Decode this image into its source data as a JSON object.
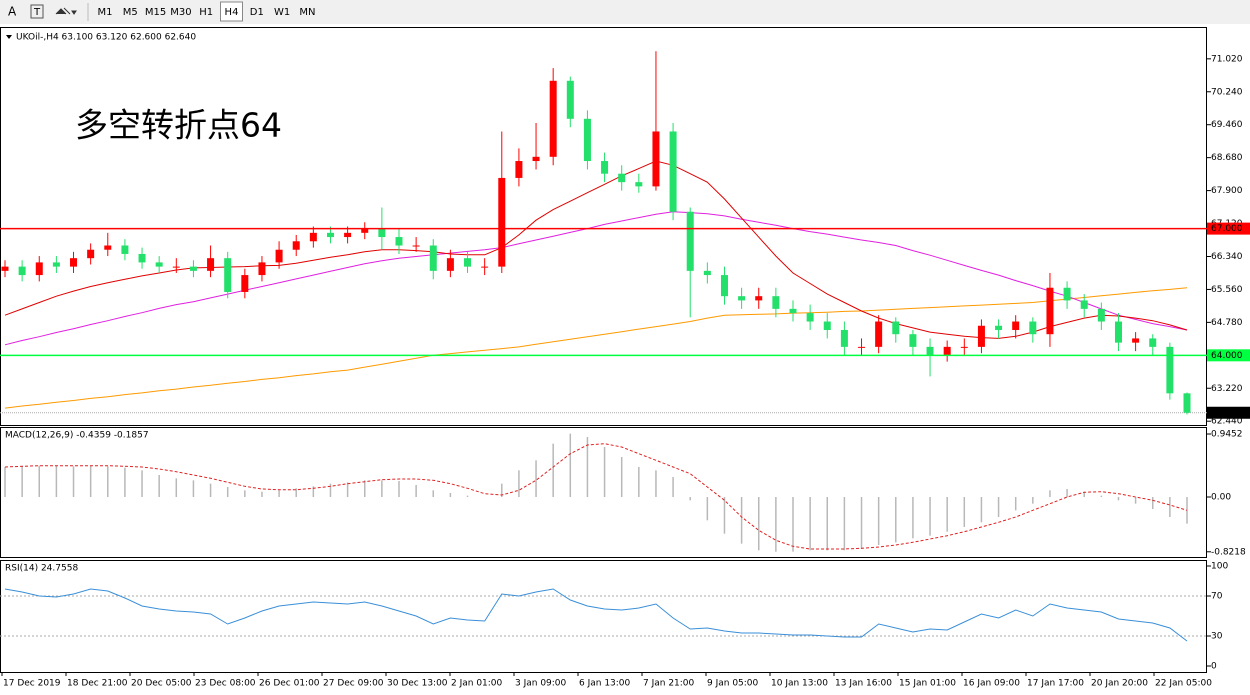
{
  "toolbar": {
    "font_button": "A",
    "timeframes": [
      "M1",
      "M5",
      "M15",
      "M30",
      "H1",
      "H4",
      "D1",
      "W1",
      "MN"
    ],
    "active": "H4"
  },
  "chart_data": [
    {
      "type": "candlestick",
      "title": "UKOil-,H4  63.100 63.120 62.600 62.640",
      "annotation": "多空转折点64",
      "annotation_color": "#ff0000",
      "up_color": "#ff0000",
      "down_color": "#22e06a",
      "x_labels": [
        "17 Dec 2019",
        "18 Dec 21:00",
        "20 Dec 05:00",
        "23 Dec 08:00",
        "26 Dec 01:00",
        "27 Dec 09:00",
        "30 Dec 13:00",
        "2 Jan 01:00",
        "3 Jan 09:00",
        "6 Jan 13:00",
        "7 Jan 21:00",
        "9 Jan 05:00",
        "10 Jan 13:00",
        "13 Jan 16:00",
        "15 Jan 01:00",
        "16 Jan 09:00",
        "17 Jan 17:00",
        "20 Jan 20:00",
        "22 Jan 05:00"
      ],
      "ylim": [
        62.35,
        71.75
      ],
      "yticks": [
        {
          "value": 71.02,
          "label": "71.020"
        },
        {
          "value": 70.24,
          "label": "70.240"
        },
        {
          "value": 69.46,
          "label": "69.460"
        },
        {
          "value": 68.68,
          "label": "68.680"
        },
        {
          "value": 67.9,
          "label": "67.900"
        },
        {
          "value": 67.12,
          "label": "67.120"
        },
        {
          "value": 66.34,
          "label": "66.340"
        },
        {
          "value": 65.56,
          "label": "65.560"
        },
        {
          "value": 64.78,
          "label": "64.780"
        },
        {
          "value": 64.0,
          "label": "64.000"
        },
        {
          "value": 63.22,
          "label": "63.220"
        },
        {
          "value": 62.44,
          "label": "62.440"
        }
      ],
      "hlines": [
        {
          "value": 67.0,
          "label": "67.000",
          "color": "#ff0000"
        },
        {
          "value": 64.0,
          "label": "64.000",
          "color": "#00ff40"
        }
      ],
      "last_price": {
        "value": 62.64,
        "label": "62.640"
      },
      "open": [
        66.0,
        66.1,
        65.9,
        66.2,
        66.1,
        66.3,
        66.5,
        66.6,
        66.4,
        66.2,
        66.1,
        66.1,
        66.0,
        66.3,
        65.5,
        65.9,
        66.2,
        66.5,
        66.7,
        66.9,
        66.8,
        66.9,
        67.0,
        66.8,
        66.6,
        66.6,
        66.0,
        66.3,
        66.1,
        66.1,
        68.2,
        68.6,
        68.7,
        70.5,
        69.6,
        68.6,
        68.3,
        68.1,
        68.0,
        69.3,
        67.4,
        66.0,
        65.9,
        65.4,
        65.3,
        65.4,
        65.1,
        65.0,
        64.8,
        64.6,
        64.2,
        64.2,
        64.8,
        64.5,
        64.2,
        64.0,
        64.2,
        64.2,
        64.7,
        64.6,
        64.8,
        64.5,
        65.6,
        65.3,
        65.1,
        64.8,
        64.3,
        64.4,
        64.2,
        63.1
      ],
      "high": [
        66.25,
        66.25,
        66.35,
        66.35,
        66.45,
        66.65,
        66.9,
        66.75,
        66.55,
        66.35,
        66.3,
        66.25,
        66.6,
        66.45,
        66.05,
        66.35,
        66.7,
        66.85,
        67.05,
        67.05,
        67.05,
        67.15,
        67.5,
        67.0,
        66.8,
        66.75,
        66.5,
        66.45,
        66.3,
        69.3,
        68.9,
        69.5,
        70.8,
        70.6,
        69.8,
        68.8,
        68.5,
        68.3,
        71.2,
        69.5,
        67.5,
        66.2,
        66.1,
        65.6,
        65.6,
        65.6,
        65.3,
        65.2,
        65.0,
        64.8,
        64.4,
        64.95,
        64.9,
        64.6,
        64.4,
        64.35,
        64.4,
        64.85,
        64.85,
        64.95,
        64.9,
        65.95,
        65.75,
        65.45,
        65.25,
        65.0,
        64.55,
        64.5,
        64.3,
        63.12
      ],
      "low": [
        65.85,
        65.75,
        65.75,
        65.95,
        65.95,
        66.15,
        66.35,
        66.25,
        66.05,
        65.95,
        65.95,
        65.85,
        65.85,
        65.35,
        65.35,
        65.75,
        66.05,
        66.35,
        66.55,
        66.65,
        66.65,
        66.75,
        66.5,
        66.4,
        66.45,
        65.8,
        65.85,
        65.95,
        65.9,
        65.95,
        68.0,
        68.4,
        68.5,
        69.4,
        68.4,
        68.1,
        67.9,
        67.85,
        67.9,
        67.2,
        64.9,
        65.7,
        65.2,
        65.1,
        65.1,
        64.9,
        64.8,
        64.6,
        64.4,
        64.0,
        64.0,
        64.05,
        64.3,
        64.0,
        63.5,
        63.85,
        64.0,
        64.05,
        64.4,
        64.4,
        64.3,
        64.2,
        65.1,
        64.9,
        64.6,
        64.1,
        64.1,
        64.0,
        62.95,
        62.6
      ],
      "close": [
        66.1,
        65.9,
        66.2,
        66.1,
        66.3,
        66.5,
        66.6,
        66.4,
        66.2,
        66.1,
        66.1,
        66.0,
        66.3,
        65.5,
        65.9,
        66.2,
        66.5,
        66.7,
        66.9,
        66.8,
        66.9,
        67.0,
        66.8,
        66.6,
        66.6,
        66.0,
        66.3,
        66.1,
        66.1,
        68.2,
        68.6,
        68.7,
        70.5,
        69.6,
        68.6,
        68.3,
        68.1,
        68.0,
        69.3,
        67.4,
        66.0,
        65.9,
        65.4,
        65.3,
        65.4,
        65.1,
        65.0,
        64.8,
        64.6,
        64.2,
        64.2,
        64.8,
        64.5,
        64.2,
        64.0,
        64.2,
        64.2,
        64.7,
        64.6,
        64.8,
        64.5,
        65.6,
        65.3,
        65.1,
        64.8,
        64.3,
        64.4,
        64.2,
        63.1,
        62.64
      ],
      "overlays": [
        {
          "color": "#ff9a00",
          "values": [
            62.75,
            62.8,
            62.84,
            62.89,
            62.93,
            62.98,
            63.02,
            63.07,
            63.11,
            63.16,
            63.2,
            63.25,
            63.29,
            63.34,
            63.38,
            63.43,
            63.47,
            63.52,
            63.56,
            63.61,
            63.65,
            63.72,
            63.79,
            63.86,
            63.93,
            64.0,
            64.04,
            64.08,
            64.12,
            64.16,
            64.2,
            64.26,
            64.32,
            64.38,
            64.44,
            64.5,
            64.56,
            64.62,
            64.68,
            64.74,
            64.8,
            64.88,
            64.95,
            64.96,
            64.97,
            64.98,
            65.0,
            65.01,
            65.02,
            65.04,
            65.05,
            65.07,
            65.09,
            65.11,
            65.13,
            65.15,
            65.17,
            65.19,
            65.21,
            65.23,
            65.25,
            65.29,
            65.33,
            65.37,
            65.41,
            65.45,
            65.49,
            65.53,
            65.56,
            65.6
          ]
        },
        {
          "color": "#e020e0",
          "values": [
            64.25,
            64.35,
            64.44,
            64.54,
            64.63,
            64.73,
            64.82,
            64.92,
            65.01,
            65.11,
            65.2,
            65.27,
            65.36,
            65.45,
            65.54,
            65.63,
            65.72,
            65.81,
            65.9,
            65.99,
            66.08,
            66.17,
            66.24,
            66.3,
            66.34,
            66.38,
            66.42,
            66.46,
            66.5,
            66.55,
            66.64,
            66.73,
            66.82,
            66.91,
            67.0,
            67.1,
            67.18,
            67.26,
            67.34,
            67.4,
            67.38,
            67.35,
            67.3,
            67.22,
            67.15,
            67.08,
            67.0,
            66.93,
            66.87,
            66.8,
            66.73,
            66.67,
            66.6,
            66.48,
            66.37,
            66.25,
            66.13,
            66.01,
            65.9,
            65.77,
            65.65,
            65.52,
            65.4,
            65.25,
            65.1,
            64.95,
            64.85,
            64.75,
            64.68,
            64.6
          ]
        },
        {
          "color": "#e00000",
          "values": [
            64.95,
            65.1,
            65.25,
            65.4,
            65.52,
            65.63,
            65.72,
            65.8,
            65.88,
            65.95,
            66.02,
            66.07,
            66.08,
            66.09,
            66.1,
            66.12,
            66.13,
            66.18,
            66.25,
            66.32,
            66.38,
            66.45,
            66.5,
            66.5,
            66.48,
            66.45,
            66.4,
            66.38,
            66.38,
            66.55,
            66.85,
            67.2,
            67.45,
            67.65,
            67.85,
            68.05,
            68.25,
            68.42,
            68.6,
            68.5,
            68.3,
            68.1,
            67.7,
            67.25,
            66.8,
            66.35,
            65.95,
            65.7,
            65.45,
            65.25,
            65.05,
            64.88,
            64.75,
            64.65,
            64.55,
            64.5,
            64.45,
            64.42,
            64.4,
            64.45,
            64.55,
            64.68,
            64.78,
            64.88,
            64.95,
            64.93,
            64.88,
            64.82,
            64.72,
            64.6
          ]
        }
      ]
    },
    {
      "type": "macd",
      "title": "MACD(12,26,9) -0.4359 -0.1857",
      "ylim": [
        -0.9,
        1.035
      ],
      "yticks": [
        0.9452,
        {
          "value": 0,
          "label": "0.00"
        },
        -0.8218
      ],
      "histogram": {
        "color": "#b8b8b8",
        "values": [
          0.45,
          0.46,
          0.47,
          0.47,
          0.46,
          0.47,
          0.46,
          0.44,
          0.4,
          0.33,
          0.28,
          0.25,
          0.2,
          0.15,
          0.1,
          0.08,
          0.1,
          0.13,
          0.16,
          0.2,
          0.22,
          0.25,
          0.25,
          0.24,
          0.18,
          0.1,
          0.06,
          0.02,
          0.0,
          0.2,
          0.4,
          0.55,
          0.8,
          0.95,
          0.9,
          0.75,
          0.6,
          0.45,
          0.4,
          0.3,
          -0.05,
          -0.35,
          -0.55,
          -0.7,
          -0.8,
          -0.82,
          -0.82,
          -0.8,
          -0.8,
          -0.8,
          -0.78,
          -0.72,
          -0.68,
          -0.62,
          -0.58,
          -0.52,
          -0.45,
          -0.38,
          -0.3,
          -0.2,
          -0.1,
          0.1,
          0.12,
          0.08,
          0.02,
          -0.05,
          -0.1,
          -0.18,
          -0.3,
          -0.4
        ]
      },
      "signal": {
        "color": "#e02020",
        "values": [
          0.45,
          0.46,
          0.47,
          0.47,
          0.47,
          0.47,
          0.47,
          0.46,
          0.45,
          0.42,
          0.38,
          0.33,
          0.28,
          0.22,
          0.16,
          0.12,
          0.11,
          0.11,
          0.13,
          0.16,
          0.2,
          0.23,
          0.26,
          0.27,
          0.27,
          0.25,
          0.2,
          0.13,
          0.05,
          0.03,
          0.1,
          0.25,
          0.45,
          0.65,
          0.78,
          0.8,
          0.75,
          0.65,
          0.55,
          0.45,
          0.35,
          0.15,
          -0.05,
          -0.3,
          -0.5,
          -0.65,
          -0.74,
          -0.78,
          -0.78,
          -0.78,
          -0.77,
          -0.75,
          -0.72,
          -0.68,
          -0.63,
          -0.58,
          -0.52,
          -0.45,
          -0.38,
          -0.3,
          -0.2,
          -0.1,
          0.0,
          0.07,
          0.08,
          0.05,
          0.0,
          -0.05,
          -0.12,
          -0.2
        ]
      }
    },
    {
      "type": "line",
      "title": "RSI(14) 24.7558",
      "ylim": [
        -6,
        105
      ],
      "yticks": [
        100,
        70,
        30,
        0
      ],
      "levels": [
        70,
        30
      ],
      "series": [
        {
          "color": "#3a8fd8",
          "values": [
            77,
            74,
            70,
            69,
            72,
            77,
            75,
            68,
            60,
            57,
            55,
            54,
            52,
            42,
            48,
            55,
            60,
            62,
            64,
            63,
            62,
            64,
            60,
            55,
            50,
            42,
            48,
            46,
            45,
            72,
            70,
            74,
            77,
            66,
            60,
            57,
            56,
            58,
            62,
            48,
            37,
            38,
            35,
            33,
            33,
            32,
            31,
            31,
            30,
            29,
            29,
            42,
            38,
            34,
            37,
            36,
            44,
            52,
            48,
            56,
            50,
            62,
            58,
            56,
            54,
            47,
            45,
            43,
            38,
            25
          ]
        }
      ]
    }
  ]
}
